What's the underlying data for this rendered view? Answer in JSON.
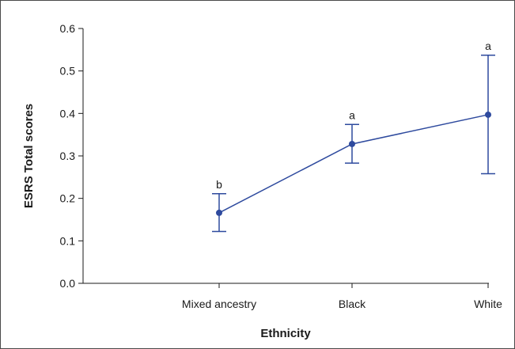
{
  "chart_data": {
    "type": "line",
    "xlabel": "Ethnicity",
    "ylabel": "ESRS Total scores",
    "categories": [
      "Mixed ancestry",
      "Black",
      "White"
    ],
    "ylim": [
      0,
      0.6
    ],
    "yticks": [
      "0.0",
      "0.1",
      "0.2",
      "0.3",
      "0.4",
      "0.5",
      "0.6"
    ],
    "series": [
      {
        "values": [
          0.166,
          0.328,
          0.397
        ],
        "error_low": [
          0.122,
          0.283,
          0.258
        ],
        "error_high": [
          0.211,
          0.374,
          0.537
        ],
        "significance_labels": [
          "b",
          "a",
          "a"
        ]
      }
    ],
    "grid": false,
    "legend": "none",
    "colors": {
      "series": "#2e4a9e",
      "axis": "#1a1a1a",
      "frame": "#4a4a4a"
    }
  }
}
